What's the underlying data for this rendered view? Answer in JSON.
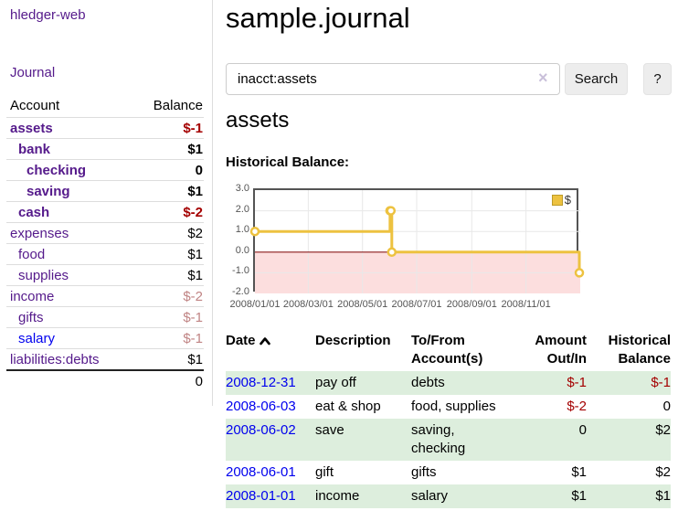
{
  "app": {
    "brand": "hledger-web"
  },
  "colors": {
    "link_purple": "#551a8b",
    "link_blue": "#0000ee",
    "negative": "#a40000",
    "faded_negative": "#c08484",
    "row_green": "#ddeedd",
    "chart_line": "#edc240",
    "chart_negative_fill": "#fcdede",
    "chart_zero_line": "#8b1a1a",
    "chart_border": "#545454",
    "grid_line": "#e8e8e8"
  },
  "sidebar": {
    "journal_link": "Journal",
    "accounts": {
      "headers": {
        "account": "Account",
        "balance": "Balance"
      },
      "rows": [
        {
          "name": "assets",
          "balance": "$-1",
          "depth": 1,
          "bold": true,
          "balance_tone": "negative",
          "link_color": "purple"
        },
        {
          "name": "bank",
          "balance": "$1",
          "depth": 2,
          "bold": true,
          "balance_tone": "normal",
          "link_color": "purple"
        },
        {
          "name": "checking",
          "balance": "0",
          "depth": 3,
          "bold": true,
          "balance_tone": "normal",
          "link_color": "purple"
        },
        {
          "name": "saving",
          "balance": "$1",
          "depth": 3,
          "bold": true,
          "balance_tone": "normal",
          "link_color": "purple"
        },
        {
          "name": "cash",
          "balance": "$-2",
          "depth": 2,
          "bold": true,
          "balance_tone": "negative",
          "link_color": "purple"
        },
        {
          "name": "expenses",
          "balance": "$2",
          "depth": 1,
          "bold": false,
          "balance_tone": "normal",
          "link_color": "purple"
        },
        {
          "name": "food",
          "balance": "$1",
          "depth": 2,
          "bold": false,
          "balance_tone": "normal",
          "link_color": "purple"
        },
        {
          "name": "supplies",
          "balance": "$1",
          "depth": 2,
          "bold": false,
          "balance_tone": "normal",
          "link_color": "purple"
        },
        {
          "name": "income",
          "balance": "$-2",
          "depth": 1,
          "bold": false,
          "balance_tone": "faded-negative",
          "link_color": "purple"
        },
        {
          "name": "gifts",
          "balance": "$-1",
          "depth": 2,
          "bold": false,
          "balance_tone": "faded-negative",
          "link_color": "purple"
        },
        {
          "name": "salary",
          "balance": "$-1",
          "depth": 2,
          "bold": false,
          "balance_tone": "faded-negative",
          "link_color": "blue"
        },
        {
          "name": "liabilities:debts",
          "balance": "$1",
          "depth": 1,
          "bold": false,
          "balance_tone": "normal",
          "link_color": "purple"
        }
      ],
      "total": "0"
    }
  },
  "header": {
    "title": "sample.journal"
  },
  "search": {
    "value": "inacct:assets",
    "clear_icon": "×",
    "button_label": "Search",
    "help_label": "?"
  },
  "main": {
    "account_heading": "assets",
    "chart_label": "Historical Balance:"
  },
  "chart_data": {
    "type": "line",
    "step": true,
    "title": "Historical Balance",
    "x_type": "date",
    "xlim": [
      "2008-01-01",
      "2009-01-01"
    ],
    "ylim": [
      -2.0,
      3.0
    ],
    "yticks": [
      {
        "value": 3.0,
        "label": "3.0",
        "grid": false
      },
      {
        "value": 2.0,
        "label": "2.0",
        "grid": true
      },
      {
        "value": 1.0,
        "label": "1.0",
        "grid": true
      },
      {
        "value": 0.0,
        "label": "0.0",
        "grid": false
      },
      {
        "value": -1.0,
        "label": "-1.0",
        "grid": true
      },
      {
        "value": -2.0,
        "label": "-2.0",
        "grid": false
      }
    ],
    "xticks": [
      {
        "date": "2008-01-01",
        "label": "2008/01/01",
        "grid": false
      },
      {
        "date": "2008-03-01",
        "label": "2008/03/01",
        "grid": true
      },
      {
        "date": "2008-05-01",
        "label": "2008/05/01",
        "grid": true
      },
      {
        "date": "2008-07-01",
        "label": "2008/07/01",
        "grid": true
      },
      {
        "date": "2008-09-01",
        "label": "2008/09/01",
        "grid": true
      },
      {
        "date": "2008-11-01",
        "label": "2008/11/01",
        "grid": true
      }
    ],
    "series": [
      {
        "name": "$",
        "color": "#edc240",
        "points": [
          [
            "2008-01-01",
            1
          ],
          [
            "2008-06-01",
            2
          ],
          [
            "2008-06-02",
            2
          ],
          [
            "2008-06-03",
            0
          ],
          [
            "2008-12-31",
            -1
          ]
        ]
      }
    ],
    "legend": {
      "position": "top-right",
      "entries": [
        "$"
      ]
    },
    "zero_line": true,
    "negative_region_shaded": true
  },
  "register": {
    "headers": {
      "date": "Date",
      "description": "Description",
      "accounts": "To/From Account(s)",
      "amount": "Amount Out/In",
      "balance": "Historical Balance"
    },
    "sort_icon": "chevron-up",
    "rows": [
      {
        "date": "2008-12-31",
        "description": "pay off",
        "accounts": "debts",
        "amount": "$-1",
        "amount_negative": true,
        "balance": "$-1",
        "balance_negative": true
      },
      {
        "date": "2008-06-03",
        "description": "eat & shop",
        "accounts": "food, supplies",
        "amount": "$-2",
        "amount_negative": true,
        "balance": "0",
        "balance_negative": false
      },
      {
        "date": "2008-06-02",
        "description": "save",
        "accounts": "saving, checking",
        "amount": "0",
        "amount_negative": false,
        "balance": "$2",
        "balance_negative": false
      },
      {
        "date": "2008-06-01",
        "description": "gift",
        "accounts": "gifts",
        "amount": "$1",
        "amount_negative": false,
        "balance": "$2",
        "balance_negative": false
      },
      {
        "date": "2008-01-01",
        "description": "income",
        "accounts": "salary",
        "amount": "$1",
        "amount_negative": false,
        "balance": "$1",
        "balance_negative": false
      }
    ]
  }
}
